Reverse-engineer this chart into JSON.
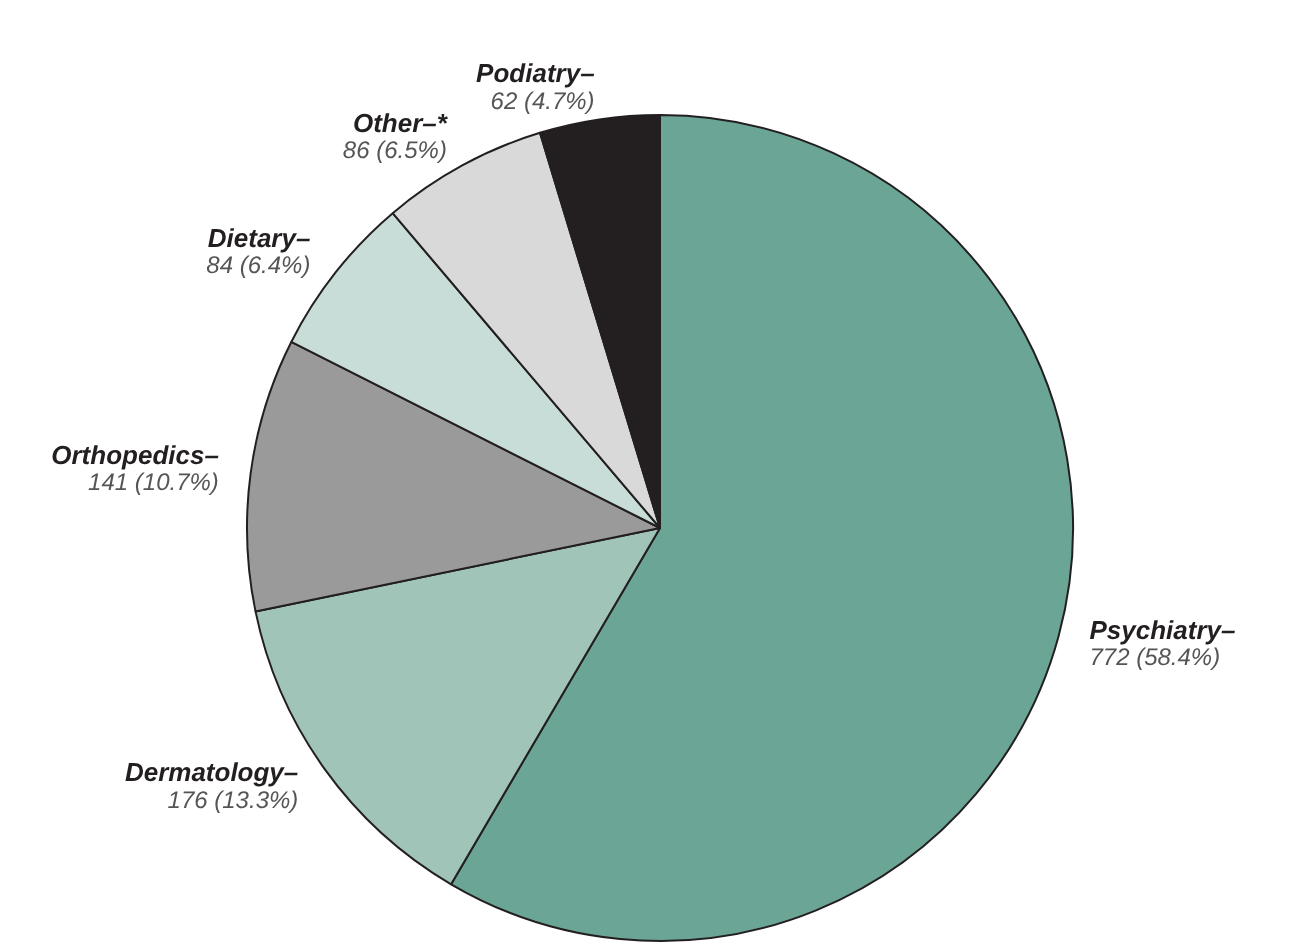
{
  "chart_data": {
    "type": "pie",
    "categories": [
      "Psychiatry–",
      "Dermatology–",
      "Orthopedics–",
      "Dietary–",
      "Other–*",
      "Podiatry–"
    ],
    "values": [
      772,
      176,
      141,
      84,
      86,
      62
    ],
    "colors": [
      "#6ba596",
      "#a0c4b8",
      "#9a9a9a",
      "#c8ddd7",
      "#d9d9d9",
      "#231f20"
    ],
    "value_labels": [
      "772 (58.4%)",
      "176 (13.3%)",
      "141 (10.7%)",
      "84 (6.4%)",
      "86 (6.5%)",
      "62 (4.7%)"
    ]
  }
}
